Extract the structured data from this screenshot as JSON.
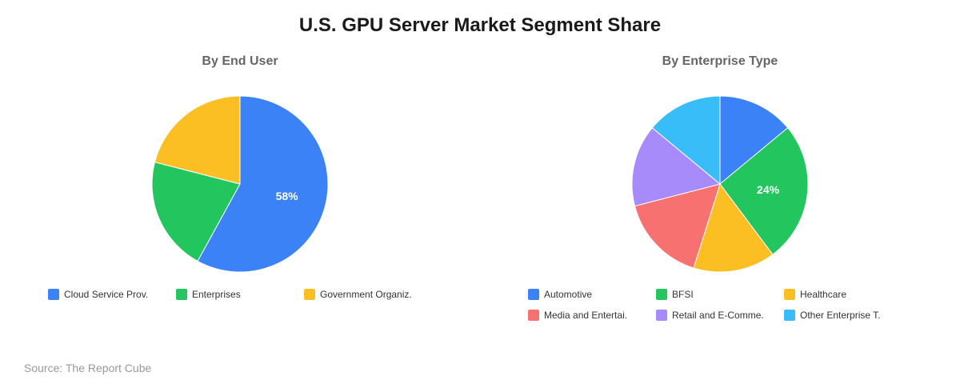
{
  "title": "U.S. GPU Server Market Segment Share",
  "source": "Source: The Report Cube",
  "chart_data": [
    {
      "type": "pie",
      "title": "By End User",
      "categories": [
        "Cloud Service Prov.",
        "Enterprises",
        "Government Organiz."
      ],
      "values": [
        58,
        21,
        21
      ],
      "colors": [
        "#3b82f6",
        "#22c55e",
        "#fbbf24"
      ],
      "data_labels": [
        "58%",
        "",
        ""
      ],
      "legend_position": "bottom"
    },
    {
      "type": "pie",
      "title": "By Enterprise Type",
      "categories": [
        "Automotive",
        "BFSI",
        "Healthcare",
        "Media and Entertai.",
        "Retail and E-Comme.",
        "Other Enterprise T."
      ],
      "values": [
        13,
        24,
        14,
        15,
        14,
        13
      ],
      "colors": [
        "#3b82f6",
        "#22c55e",
        "#fbbf24",
        "#f87171",
        "#a78bfa",
        "#38bdf8"
      ],
      "data_labels": [
        "",
        "24%",
        "",
        "",
        "",
        ""
      ],
      "legend_position": "bottom"
    }
  ]
}
